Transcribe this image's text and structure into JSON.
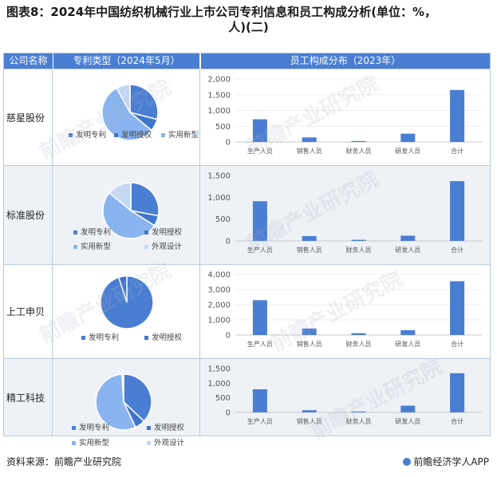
{
  "title": {
    "line1": "图表8：2024年中国纺织机械行业上市公司专利信息和员工构成分析(单位：%，",
    "line2": "人)(二)"
  },
  "headers": {
    "company": "公司名称",
    "patent": "专利类型（2024年5月）",
    "staff": "员工构成分布（2023年）"
  },
  "footer": {
    "source": "资料来源：前瞻产业研究院",
    "brand": "前瞻经济学人APP"
  },
  "watermark": "前瞻产业研究院",
  "colors": {
    "header": "#4a7ed3",
    "bar": "#4a7ed3",
    "pie": [
      "#4a7ed3",
      "#3f75cc",
      "#8ab4ef",
      "#c5d8f3"
    ]
  },
  "chart_data": [
    {
      "company": "慈星股份",
      "pie": {
        "type": "pie",
        "labels": [
          "发明专利",
          "发明授权",
          "实用新型",
          ""
        ],
        "values": [
          29,
          7,
          56,
          8
        ]
      },
      "bar": {
        "type": "bar",
        "categories": [
          "生产人员",
          "销售人员",
          "财务人员",
          "研发人员",
          "合计"
        ],
        "values": [
          720,
          145,
          30,
          265,
          1650
        ],
        "yticks": [
          "0",
          "500",
          "1,000",
          "1,500",
          "2,000"
        ],
        "ylim": [
          0,
          2000
        ]
      }
    },
    {
      "company": "标准股份",
      "pie": {
        "type": "pie",
        "labels": [
          "发明专利",
          "发明授权",
          "实用新型",
          "外观设计"
        ],
        "values": [
          28,
          6,
          52,
          14
        ]
      },
      "bar": {
        "type": "bar",
        "categories": [
          "生产人员",
          "销售人员",
          "财务人员",
          "研发人员",
          "合计"
        ],
        "values": [
          910,
          110,
          25,
          120,
          1370
        ],
        "yticks": [
          "0",
          "500",
          "1,000",
          "1,500"
        ],
        "ylim": [
          0,
          1500
        ]
      }
    },
    {
      "company": "上工申贝",
      "pie": {
        "type": "pie",
        "labels": [
          "发明专利",
          "发明授权"
        ],
        "values": [
          95,
          5
        ]
      },
      "bar": {
        "type": "bar",
        "categories": [
          "生产人员",
          "销售人员",
          "财务人员",
          "研发人员",
          "合计"
        ],
        "values": [
          2300,
          430,
          120,
          320,
          3550
        ],
        "yticks": [
          "0",
          "1,000",
          "2,000",
          "3,000",
          "4,000"
        ],
        "ylim": [
          0,
          4000
        ]
      }
    },
    {
      "company": "精工科技",
      "pie": {
        "type": "pie",
        "labels": [
          "发明专利",
          "发明授权",
          "实用新型",
          "外观设计"
        ],
        "values": [
          37,
          6,
          56,
          1
        ]
      },
      "bar": {
        "type": "bar",
        "categories": [
          "生产人员",
          "销售人员",
          "财务人员",
          "研发人员",
          "合计"
        ],
        "values": [
          790,
          75,
          30,
          230,
          1340
        ],
        "yticks": [
          "0",
          "500",
          "1,000",
          "1,500"
        ],
        "ylim": [
          0,
          1500
        ]
      }
    }
  ]
}
